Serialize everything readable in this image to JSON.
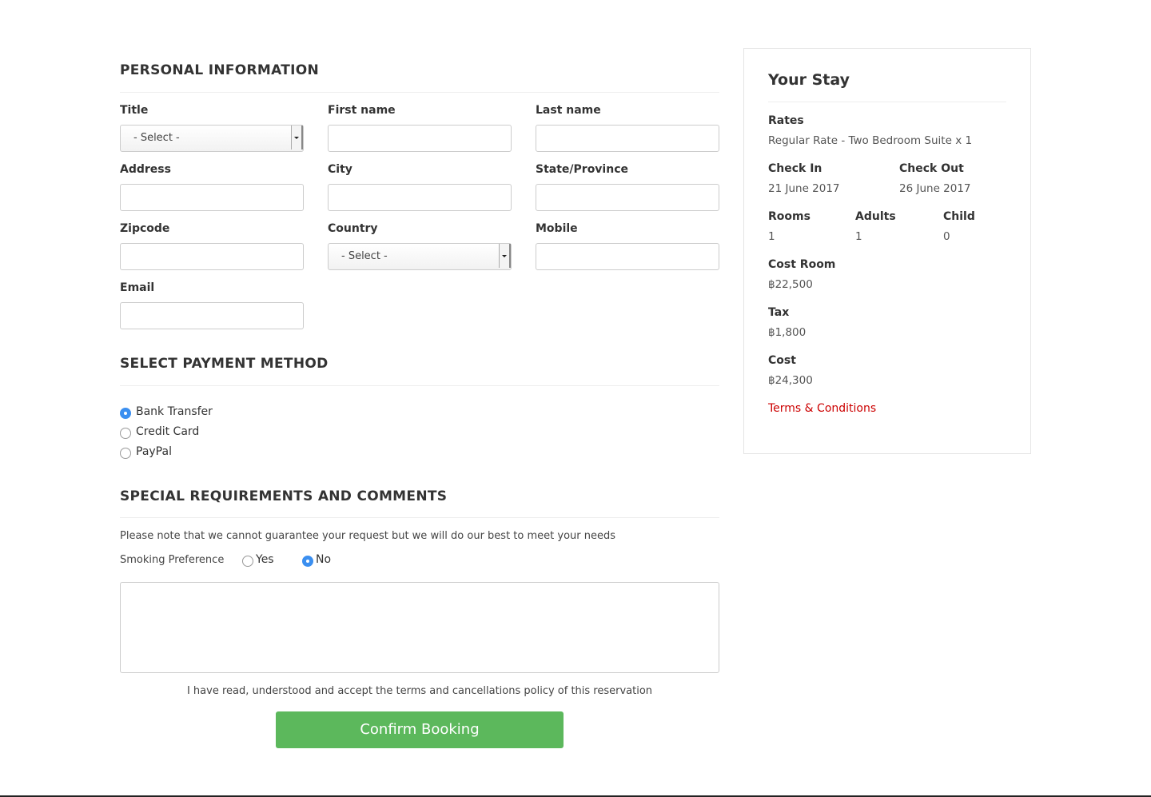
{
  "personal": {
    "title": "PERSONAL INFORMATION",
    "fields": [
      {
        "label": "Title",
        "select": "- Select -"
      },
      {
        "label": "First name"
      },
      {
        "label": "Last name"
      },
      {
        "label": "Address"
      },
      {
        "label": "City"
      },
      {
        "label": "State/Province"
      },
      {
        "label": "Zipcode"
      },
      {
        "label": "Country",
        "select": "- Select -"
      },
      {
        "label": "Mobile"
      },
      {
        "label": "Email"
      }
    ]
  },
  "payment": {
    "title": "SELECT PAYMENT METHOD",
    "options": [
      {
        "label": "Bank Transfer",
        "checked": true
      },
      {
        "label": "Credit Card",
        "checked": false
      },
      {
        "label": "PayPal",
        "checked": false
      }
    ]
  },
  "special": {
    "title": "SPECIAL REQUIREMENTS AND COMMENTS",
    "note": "Please note that we cannot guarantee your request but we will do our best to meet your needs",
    "smoking_label": "Smoking Preference",
    "smoking_options": [
      {
        "label": "Yes",
        "checked": false
      },
      {
        "label": "No",
        "checked": true
      }
    ]
  },
  "terms_text": "I have read, understood and accept the terms and cancellations policy of this reservation",
  "button": "Confirm Booking",
  "stay": {
    "title": "Your Stay",
    "rates_label": "Rates",
    "rates": "Regular Rate - Two Bedroom Suite x 1",
    "check_in_label": "Check In",
    "check_in": "21 June 2017",
    "check_out_label": "Check Out",
    "check_out": "26 June 2017",
    "rooms_label": "Rooms",
    "rooms": "1",
    "adults_label": "Adults",
    "adults": "1",
    "child_label": "Child",
    "child": "0",
    "cost_room_label": "Cost Room",
    "cost_room": "฿22,500",
    "tax_label": "Tax",
    "tax": "฿1,800",
    "cost_label": "Cost",
    "cost": "฿24,300",
    "terms_link": "Terms & Conditions"
  }
}
